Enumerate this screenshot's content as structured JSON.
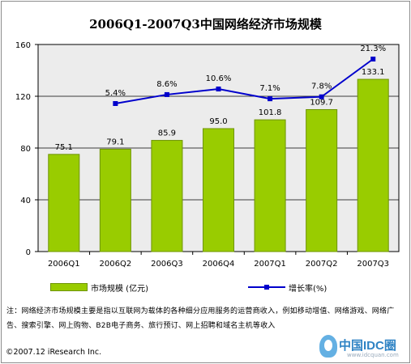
{
  "chart_data": {
    "type": "bar",
    "title": "2006Q1-2007Q3中国网络经济市场规模",
    "categories": [
      "2006Q1",
      "2006Q2",
      "2006Q3",
      "2006Q4",
      "2007Q1",
      "2007Q2",
      "2007Q3"
    ],
    "series": [
      {
        "name": "市场规模 (亿元)",
        "type": "bar",
        "values": [
          75.1,
          79.1,
          85.9,
          95.0,
          101.8,
          109.7,
          133.1
        ],
        "labels": [
          "75.1",
          "79.1",
          "85.9",
          "95.0",
          "101.8",
          "109.7",
          "133.1"
        ]
      },
      {
        "name": "增长率(%)",
        "type": "line",
        "values": [
          null,
          5.4,
          8.6,
          10.6,
          7.1,
          7.8,
          21.3
        ],
        "labels": [
          null,
          "5.4%",
          "8.6%",
          "10.6%",
          "7.1%",
          "7.8%",
          "21.3%"
        ]
      }
    ],
    "yticks": [
      "0",
      "40",
      "80",
      "120",
      "160"
    ],
    "ylim": [
      0,
      160
    ],
    "grid": true,
    "legend": "bottom",
    "colors": {
      "bar": "#99cc00",
      "bar_border": "#6e9400",
      "line": "#0000cc",
      "plot_bg": "#ececec"
    }
  },
  "note": "注：网络经济市场规模主要是指以互联网为载体的各种细分应用服务的运营商收入，例如移动增值、网络游戏、网络广告、搜索引擎、网上购物、B2B电子商务、旅行预订、网上招聘和域名主机等收入",
  "source": "©2007.12 iResearch Inc.",
  "logo": {
    "name": "中国IDC圈",
    "url_text": "www.idcquan.com"
  }
}
